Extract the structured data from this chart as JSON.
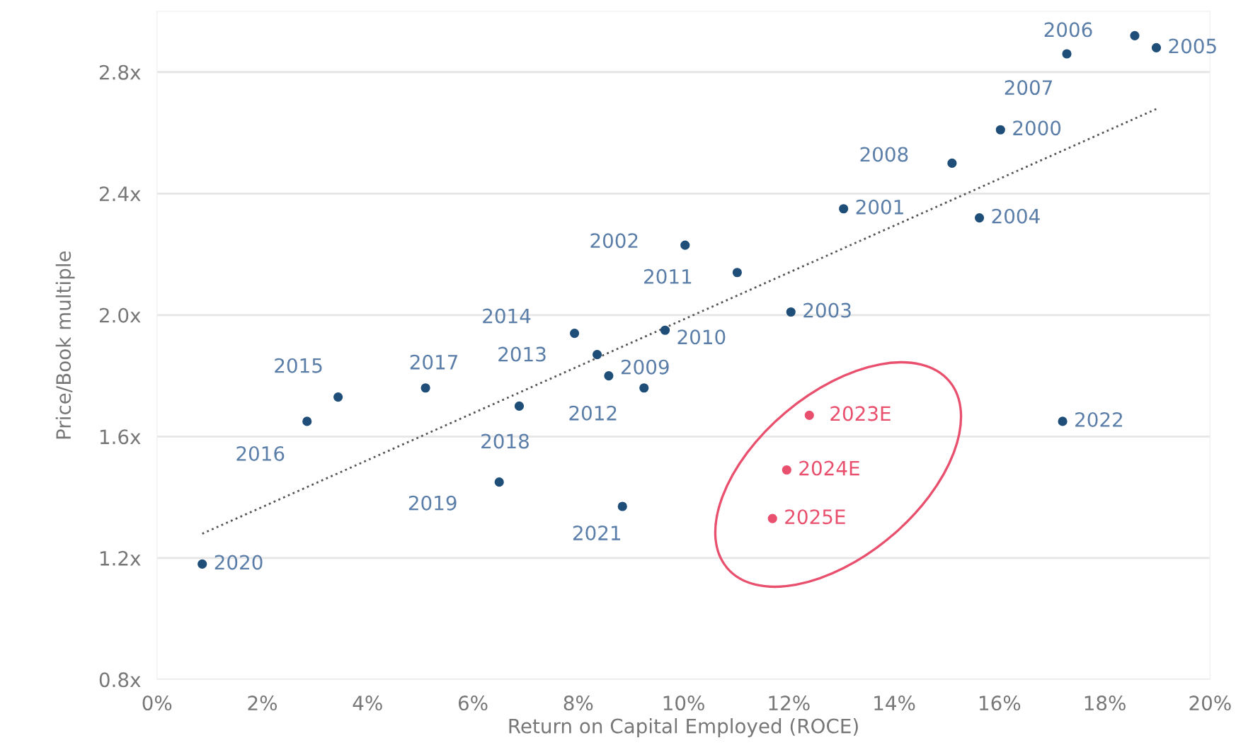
{
  "chart_data": {
    "type": "scatter",
    "xlabel": "Return on Capital Employed (ROCE)",
    "ylabel": "Price/Book multiple",
    "xlim": [
      0,
      20
    ],
    "ylim": [
      0.8,
      3.0
    ],
    "xticks": [
      {
        "value": 0,
        "label": "0%"
      },
      {
        "value": 2,
        "label": "2%"
      },
      {
        "value": 4,
        "label": "4%"
      },
      {
        "value": 6,
        "label": "6%"
      },
      {
        "value": 8,
        "label": "8%"
      },
      {
        "value": 10,
        "label": "10%"
      },
      {
        "value": 12,
        "label": "12%"
      },
      {
        "value": 14,
        "label": "14%"
      },
      {
        "value": 16,
        "label": "16%"
      },
      {
        "value": 18,
        "label": "18%"
      },
      {
        "value": 20,
        "label": "20%"
      }
    ],
    "yticks": [
      {
        "value": 0.8,
        "label": "0.8x"
      },
      {
        "value": 1.2,
        "label": "1.2x"
      },
      {
        "value": 1.6,
        "label": "1.6x"
      },
      {
        "value": 2.0,
        "label": "2.0x"
      },
      {
        "value": 2.4,
        "label": "2.4x"
      },
      {
        "value": 2.8,
        "label": "2.8x"
      }
    ],
    "grid": "y",
    "marker": "circle",
    "series": [
      {
        "color": "#1f4e79",
        "x": [
          0.86,
          2.85,
          3.44,
          5.1,
          6.88,
          6.5,
          7.93,
          8.36,
          8.58,
          9.25,
          8.84,
          9.65,
          10.03,
          11.02,
          12.04,
          13.04,
          15.1,
          15.62,
          16.02,
          17.28,
          18.57,
          18.98,
          17.2
        ],
        "values": [
          1.18,
          1.65,
          1.73,
          1.76,
          1.7,
          1.45,
          1.94,
          1.87,
          1.8,
          1.76,
          1.37,
          1.95,
          2.23,
          2.14,
          2.01,
          2.35,
          2.5,
          2.32,
          2.61,
          2.86,
          2.92,
          2.88,
          1.65
        ]
      },
      {
        "color": "#e8506e",
        "x": [
          12.39,
          11.96,
          11.69
        ],
        "values": [
          1.67,
          1.49,
          1.33
        ]
      },
      {
        "type": "line",
        "color": "#555555",
        "line_style": "dotted",
        "marker": "none",
        "x": [
          0.86,
          19.0
        ],
        "values": [
          1.28,
          2.68
        ]
      }
    ],
    "annotations": [
      {
        "text": "2020",
        "x": 0.86,
        "y": 1.18
      },
      {
        "text": "2016",
        "x": 2.85,
        "y": 1.65
      },
      {
        "text": "2015",
        "x": 3.44,
        "y": 1.73
      },
      {
        "text": "2017",
        "x": 5.1,
        "y": 1.76
      },
      {
        "text": "2018",
        "x": 6.88,
        "y": 1.7
      },
      {
        "text": "2019",
        "x": 6.5,
        "y": 1.45
      },
      {
        "text": "2014",
        "x": 7.93,
        "y": 1.94
      },
      {
        "text": "2013",
        "x": 8.36,
        "y": 1.87
      },
      {
        "text": "2009",
        "x": 8.58,
        "y": 1.8
      },
      {
        "text": "2012",
        "x": 9.25,
        "y": 1.76
      },
      {
        "text": "2021",
        "x": 8.84,
        "y": 1.37
      },
      {
        "text": "2010",
        "x": 9.65,
        "y": 1.95
      },
      {
        "text": "2002",
        "x": 10.03,
        "y": 2.23
      },
      {
        "text": "2011",
        "x": 11.02,
        "y": 2.14
      },
      {
        "text": "2003",
        "x": 12.04,
        "y": 2.01
      },
      {
        "text": "2001",
        "x": 13.04,
        "y": 2.35
      },
      {
        "text": "2008",
        "x": 15.1,
        "y": 2.5
      },
      {
        "text": "2004",
        "x": 15.62,
        "y": 2.32
      },
      {
        "text": "2000",
        "x": 16.02,
        "y": 2.61
      },
      {
        "text": "2007",
        "x": 17.28,
        "y": 2.86
      },
      {
        "text": "2006",
        "x": 18.57,
        "y": 2.92
      },
      {
        "text": "2005",
        "x": 18.98,
        "y": 2.88
      },
      {
        "text": "2022",
        "x": 17.2,
        "y": 1.65
      },
      {
        "text": "2023E",
        "x": 12.39,
        "y": 1.67
      },
      {
        "text": "2024E",
        "x": 11.96,
        "y": 1.49
      },
      {
        "text": "2025E",
        "x": 11.69,
        "y": 1.33
      }
    ]
  }
}
